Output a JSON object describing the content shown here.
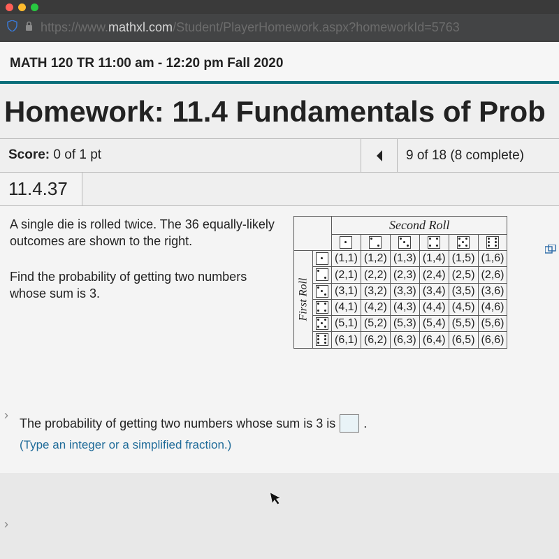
{
  "window": {
    "traffic_light_colors": [
      "#ff5f57",
      "#febc2e",
      "#28c840"
    ]
  },
  "address_bar": {
    "url_protocol": "https://www.",
    "url_host": "mathxl.com",
    "url_path": "/Student/PlayerHomework.aspx?homeworkId=5763"
  },
  "header": {
    "course": "MATH 120 TR 11:00 am - 12:20 pm Fall 2020",
    "hw_title": "Homework: 11.4 Fundamentals of Prob",
    "score_label": "Score:",
    "score_value": "0 of 1 pt",
    "progress": "9 of 18 (8 complete)",
    "question_number": "11.4.37"
  },
  "question": {
    "stem1": "A single die is rolled twice.  The 36 equally-likely outcomes are shown to the right.",
    "stem2": "Find the probability of getting two numbers whose sum is 3.",
    "answer_prompt_pre": "The probability of getting two numbers whose sum is 3 is",
    "answer_prompt_post": ".",
    "hint": "(Type an integer or a simplified fraction.)"
  },
  "dice_table": {
    "col_header": "Second Roll",
    "row_header": "First Roll",
    "faces": [
      1,
      2,
      3,
      4,
      5,
      6
    ],
    "cells": [
      [
        "(1,1)",
        "(1,2)",
        "(1,3)",
        "(1,4)",
        "(1,5)",
        "(1,6)"
      ],
      [
        "(2,1)",
        "(2,2)",
        "(2,3)",
        "(2,4)",
        "(2,5)",
        "(2,6)"
      ],
      [
        "(3,1)",
        "(3,2)",
        "(3,3)",
        "(3,4)",
        "(3,5)",
        "(3,6)"
      ],
      [
        "(4,1)",
        "(4,2)",
        "(4,3)",
        "(4,4)",
        "(4,5)",
        "(4,6)"
      ],
      [
        "(5,1)",
        "(5,2)",
        "(5,3)",
        "(5,4)",
        "(5,5)",
        "(5,6)"
      ],
      [
        "(6,1)",
        "(6,2)",
        "(6,3)",
        "(6,4)",
        "(6,5)",
        "(6,6)"
      ]
    ]
  },
  "colors": {
    "accent_teal": "#0a6e7a",
    "link_blue": "#1f6b99"
  }
}
